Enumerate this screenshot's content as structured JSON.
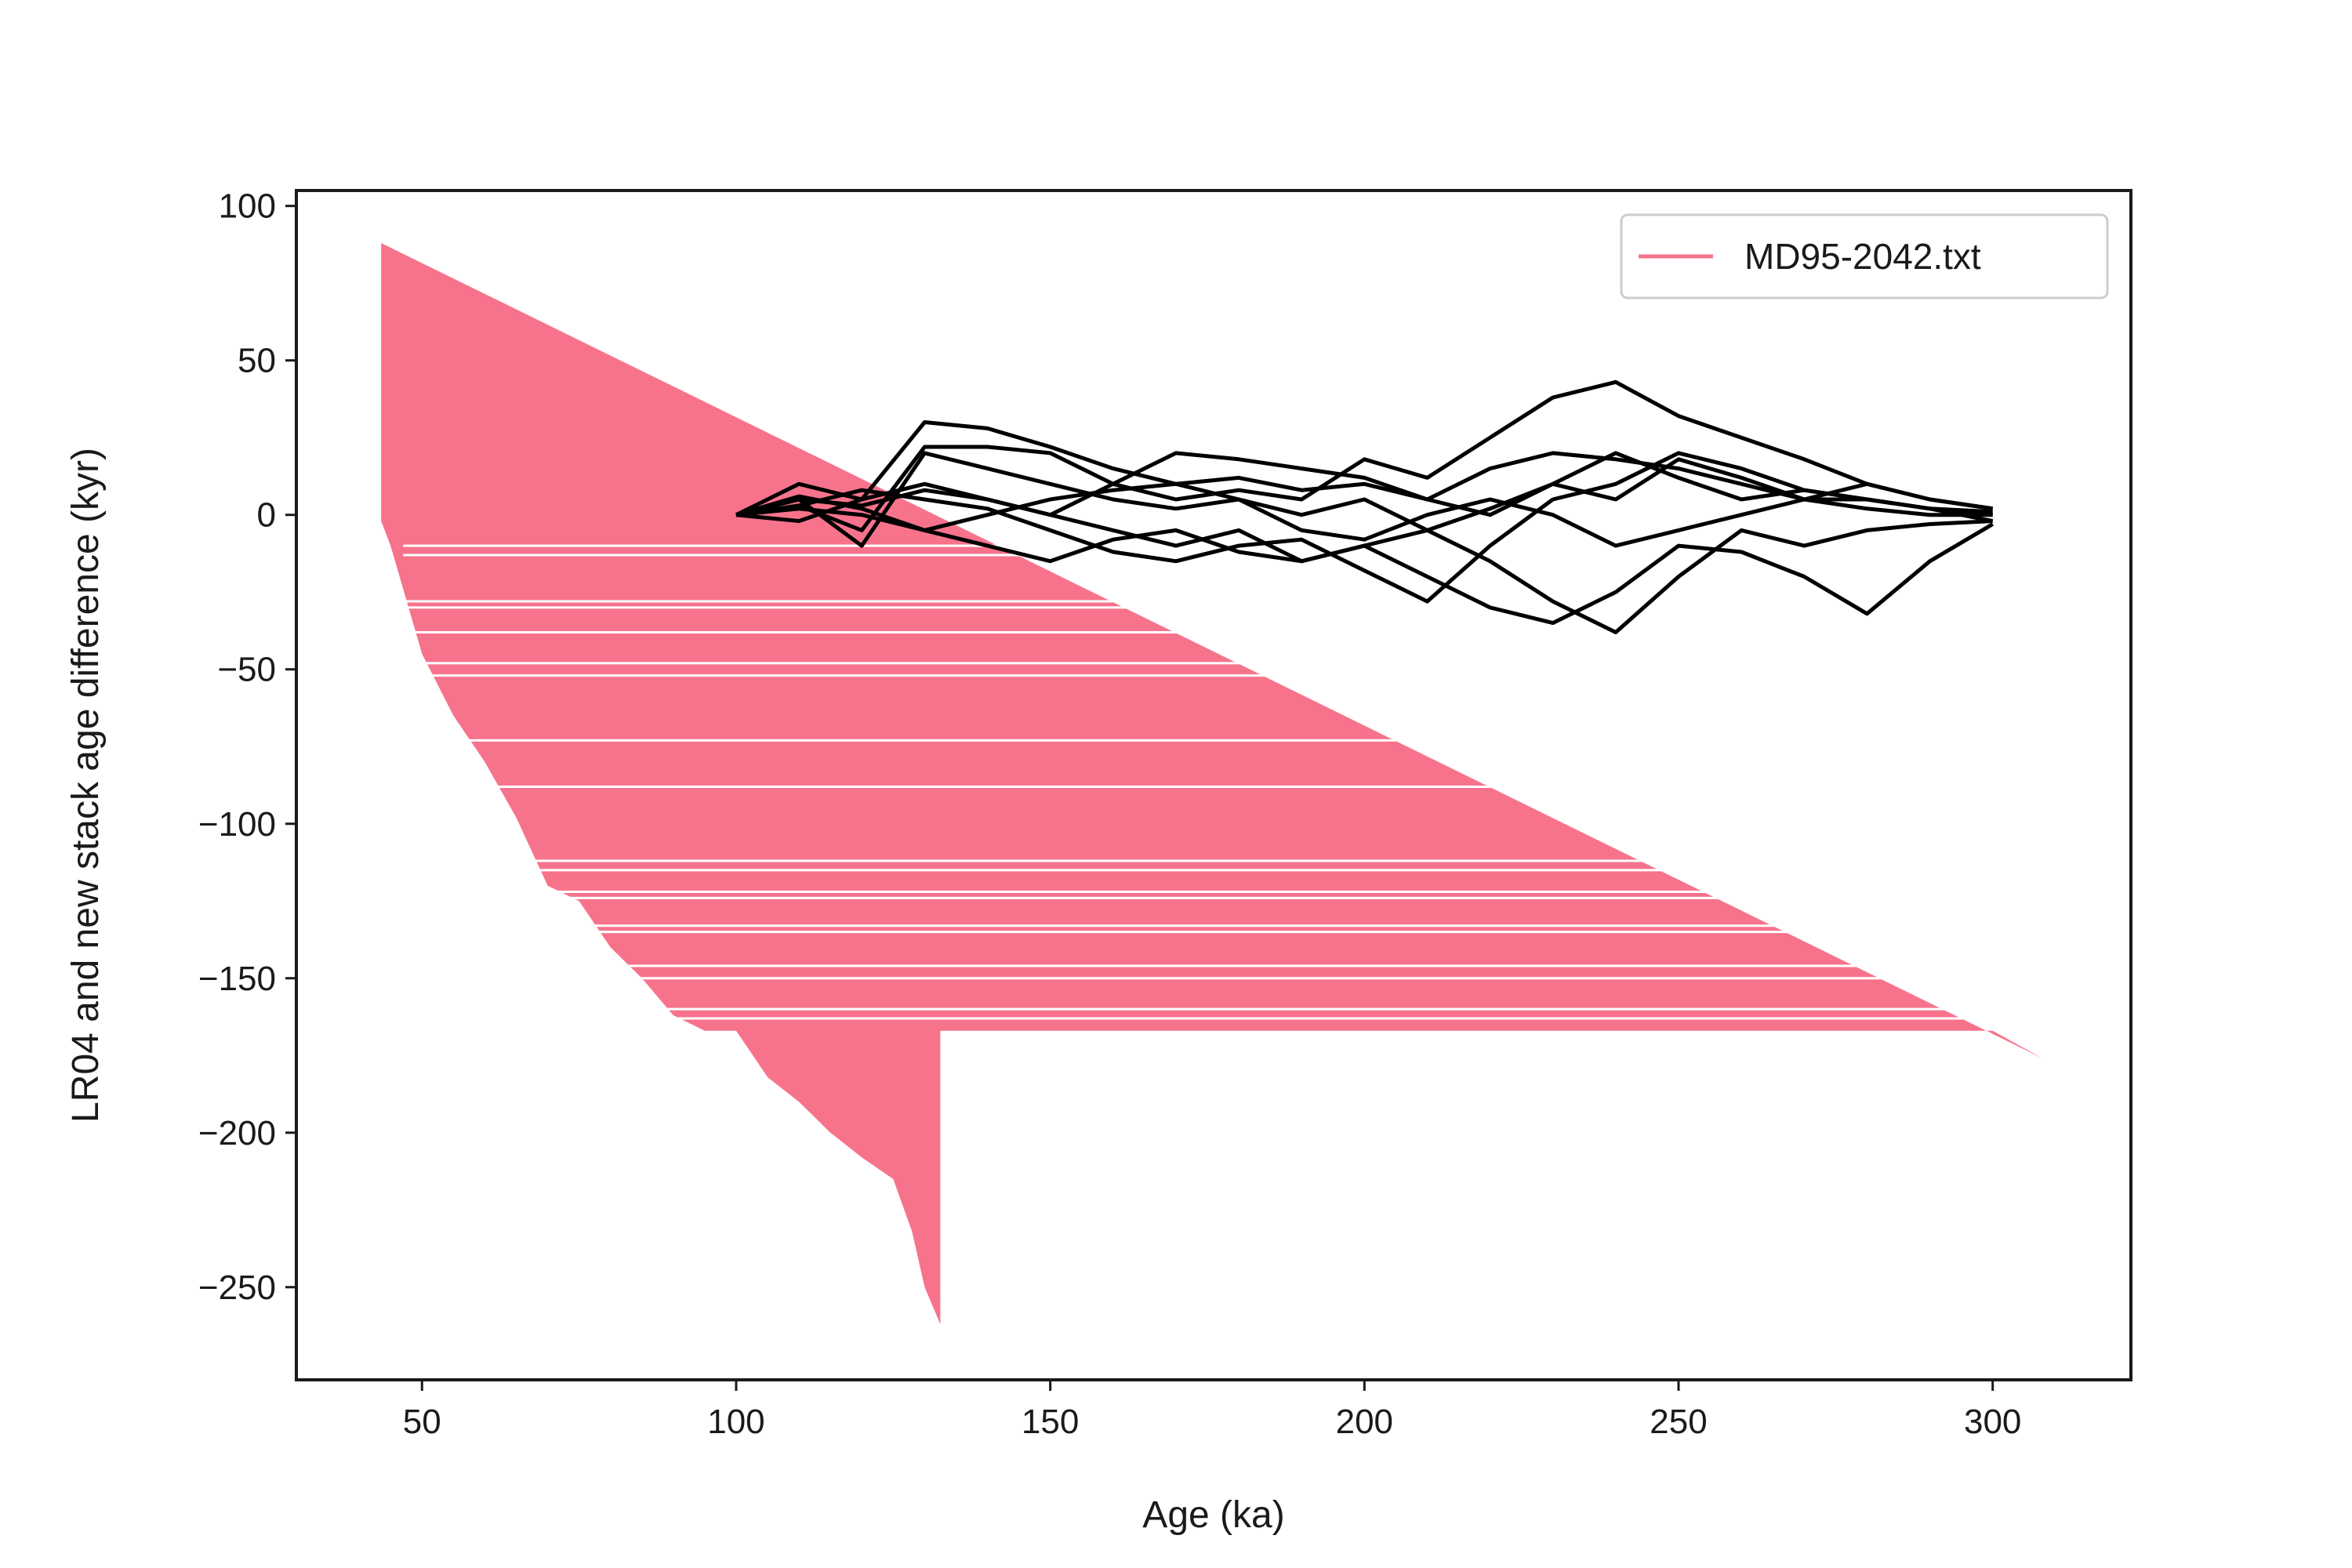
{
  "chart_data": {
    "type": "line",
    "title": "",
    "xlabel": "Age (ka)",
    "ylabel": "LR04 and new stack age difference (kyr)",
    "xlim": [
      30,
      322
    ],
    "ylim": [
      -280,
      105
    ],
    "xticks": [
      50,
      100,
      150,
      200,
      250,
      300
    ],
    "yticks": [
      100,
      50,
      0,
      -50,
      -100,
      -150,
      -200,
      -250
    ],
    "xtick_labels": [
      "50",
      "100",
      "150",
      "200",
      "250",
      "300"
    ],
    "ytick_labels": [
      "100",
      "50",
      "0",
      "−50",
      "−100",
      "−150",
      "−200",
      "−250"
    ],
    "grid": false,
    "legend": {
      "position": "top-right",
      "entries": [
        {
          "label": "MD95-2042.txt",
          "color": "#f7738c"
        }
      ]
    },
    "series": [
      {
        "name": "MD95-2042.txt",
        "color": "#f7738c",
        "kind": "filled-region",
        "x": [
          43.5,
          43.5,
          45,
          50,
          55,
          60,
          65,
          70,
          75,
          80,
          85,
          90,
          95,
          100,
          105,
          110,
          115,
          120,
          125,
          128,
          130,
          132.5,
          132.5,
          300,
          308,
          43.5
        ],
        "y": [
          88,
          -2,
          -10,
          -45,
          -65,
          -80,
          -98,
          -120,
          -125,
          -140,
          -150,
          -162,
          -167,
          -167,
          -182,
          -190,
          -200,
          -208,
          -215,
          -232,
          -250,
          -262,
          -167,
          -167,
          -176,
          88
        ],
        "gap_lines_y": [
          -10,
          -13,
          -28,
          -30,
          -38,
          -48,
          -52,
          -73,
          -88,
          -112,
          -115,
          -122,
          -124,
          -133,
          -135,
          -146,
          -150,
          -160,
          -163
        ]
      },
      {
        "name": "",
        "color": "#000000",
        "kind": "line-ensemble",
        "x": [
          100,
          110,
          120,
          130,
          140,
          150,
          160,
          170,
          180,
          190,
          200,
          210,
          220,
          230,
          240,
          250,
          260,
          270,
          280,
          290,
          300
        ],
        "lines": [
          [
            0,
            3,
            -5,
            22,
            22,
            20,
            10,
            5,
            8,
            5,
            18,
            12,
            25,
            38,
            43,
            32,
            25,
            18,
            10,
            5,
            2
          ],
          [
            0,
            10,
            5,
            30,
            28,
            22,
            15,
            10,
            12,
            8,
            10,
            5,
            15,
            20,
            18,
            15,
            10,
            5,
            5,
            2,
            0
          ],
          [
            0,
            5,
            -10,
            20,
            15,
            10,
            5,
            2,
            5,
            0,
            5,
            -5,
            2,
            10,
            5,
            18,
            12,
            5,
            2,
            0,
            0
          ],
          [
            0,
            -2,
            5,
            10,
            5,
            0,
            -5,
            -10,
            -5,
            -15,
            -10,
            -20,
            -30,
            -35,
            -25,
            -10,
            -12,
            -20,
            -32,
            -15,
            -3
          ],
          [
            0,
            2,
            0,
            -5,
            -10,
            -15,
            -8,
            -5,
            -12,
            -15,
            -10,
            -5,
            -15,
            -28,
            -38,
            -20,
            -5,
            -10,
            -5,
            -3,
            -2
          ],
          [
            0,
            5,
            3,
            8,
            5,
            0,
            10,
            20,
            18,
            15,
            12,
            5,
            0,
            10,
            20,
            12,
            5,
            8,
            5,
            2,
            1
          ],
          [
            0,
            3,
            8,
            5,
            2,
            -5,
            -12,
            -15,
            -10,
            -8,
            -18,
            -28,
            -10,
            5,
            10,
            20,
            15,
            8,
            5,
            2,
            -2
          ],
          [
            0,
            6,
            2,
            -5,
            0,
            5,
            8,
            10,
            5,
            -5,
            -8,
            0,
            5,
            0,
            -10,
            -5,
            0,
            5,
            10,
            5,
            2
          ]
        ]
      }
    ]
  }
}
